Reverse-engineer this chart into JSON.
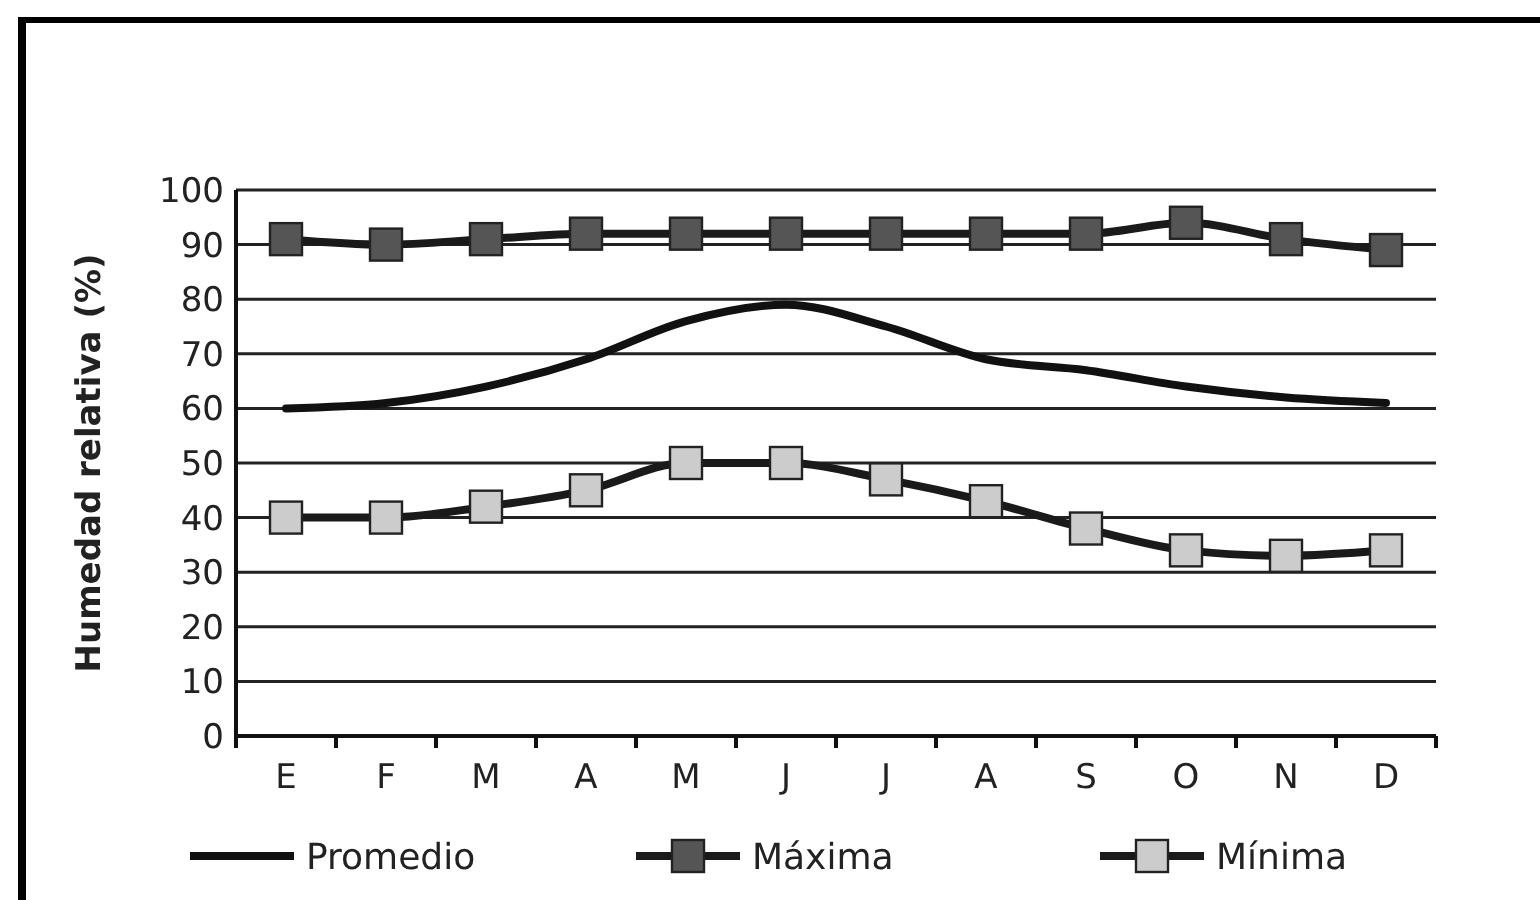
{
  "chart_data": {
    "type": "line",
    "ylabel": "Humedad relativa (%)",
    "categories": [
      "E",
      "F",
      "M",
      "A",
      "M",
      "J",
      "J",
      "A",
      "S",
      "O",
      "N",
      "D"
    ],
    "ylim": [
      0,
      100
    ],
    "yticks": [
      0,
      10,
      20,
      30,
      40,
      50,
      60,
      70,
      80,
      90,
      100
    ],
    "grid": "y",
    "legend": "bottom",
    "series": [
      {
        "name": "Promedio",
        "color": "#111111",
        "marker": "none",
        "values": [
          60,
          61,
          64,
          69,
          76,
          79,
          75,
          69,
          67,
          64,
          62,
          61
        ]
      },
      {
        "name": "Máxima",
        "color": "#555555",
        "marker": "square",
        "values": [
          91,
          90,
          91,
          92,
          92,
          92,
          92,
          92,
          92,
          94,
          91,
          89
        ]
      },
      {
        "name": "Mínima",
        "color": "#cccccc",
        "marker": "square",
        "values": [
          40,
          40,
          42,
          45,
          50,
          50,
          47,
          43,
          38,
          34,
          33,
          34
        ]
      }
    ]
  }
}
